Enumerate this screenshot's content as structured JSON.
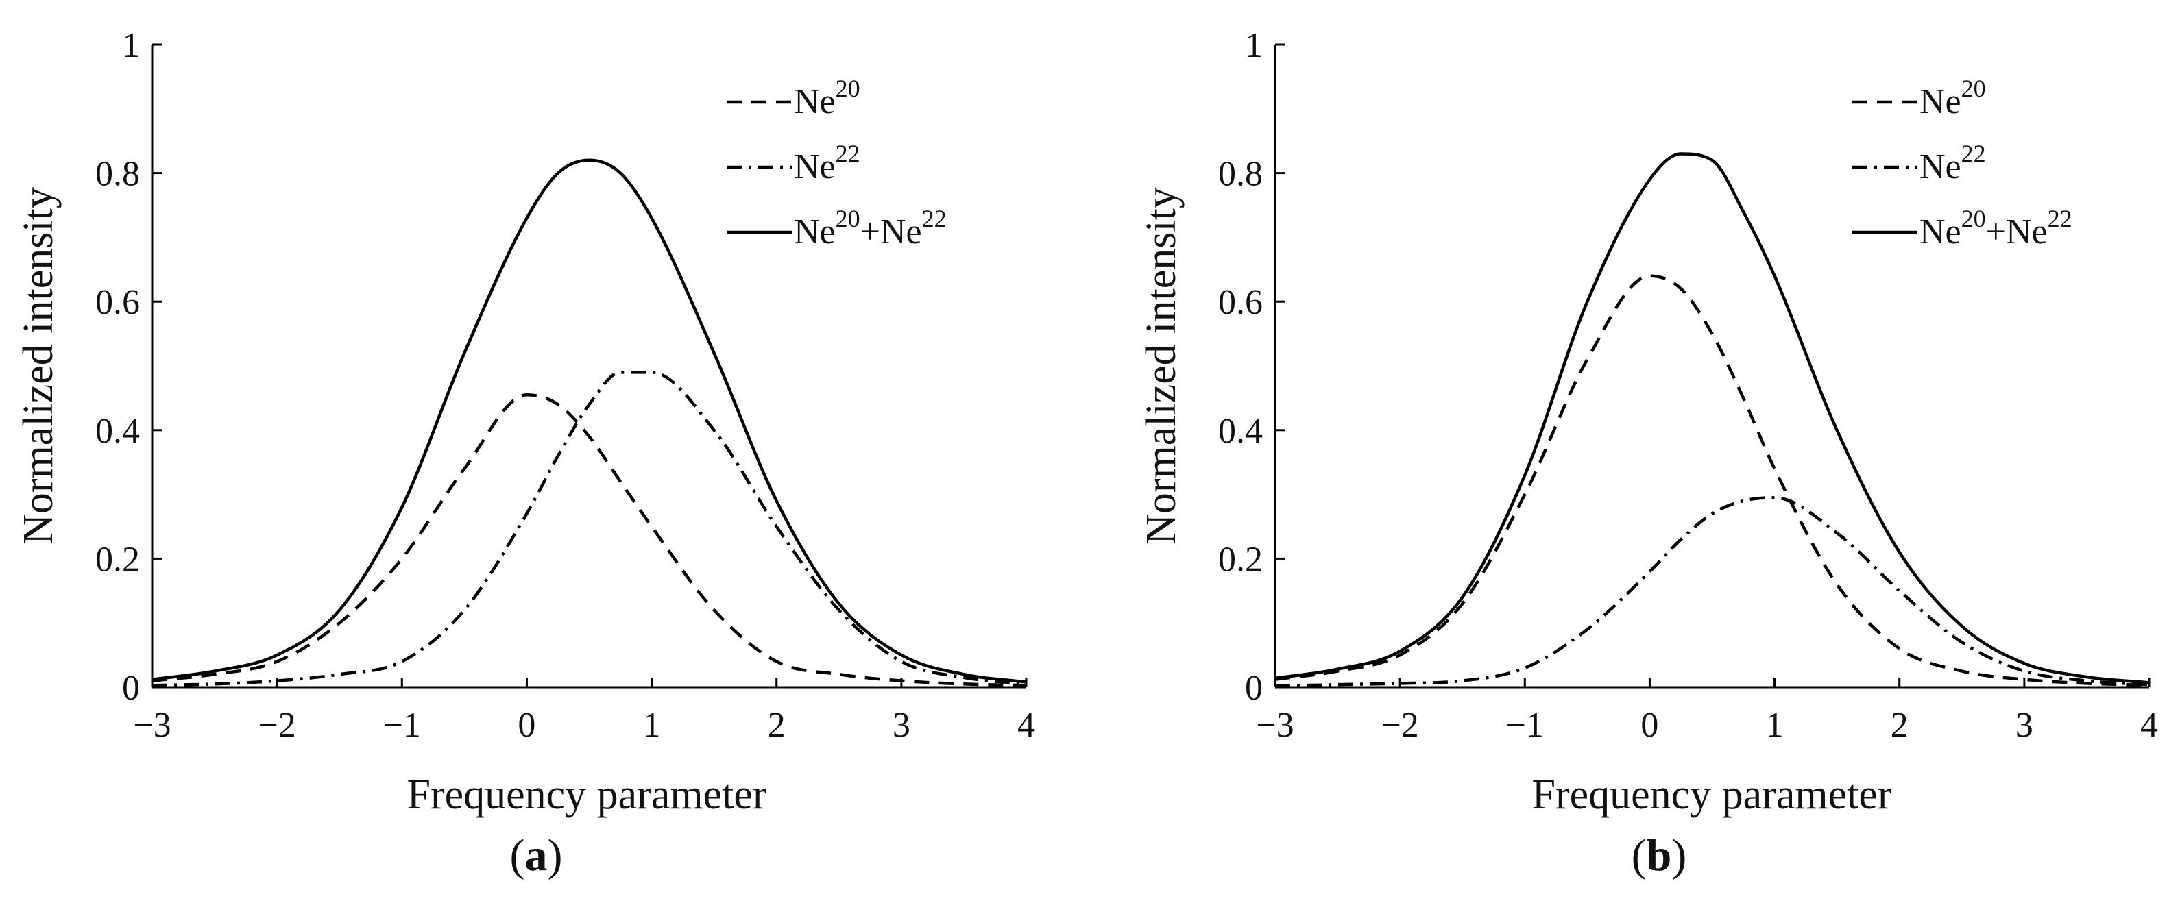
{
  "figure": {
    "panel_labels": [
      "a",
      "b"
    ]
  },
  "chart_data": [
    {
      "type": "line",
      "panel": "a",
      "xlabel": "Frequency parameter",
      "ylabel": "Normalized intensity",
      "xlim": [
        -3,
        4
      ],
      "ylim": [
        0,
        1
      ],
      "xticks": [
        -3,
        -2,
        -1,
        0,
        1,
        2,
        3,
        4
      ],
      "xtick_labels": [
        "−3",
        "−2",
        "−1",
        "0",
        "1",
        "2",
        "3",
        "4"
      ],
      "yticks": [
        0,
        0.2,
        0.4,
        0.6,
        0.8,
        1
      ],
      "ytick_labels": [
        "0",
        "0.2",
        "0.4",
        "0.6",
        "0.8",
        "1"
      ],
      "grid": false,
      "legend_position": "top-right",
      "x": [
        -3,
        -2.5,
        -2,
        -1.5,
        -1,
        -0.5,
        0,
        0.25,
        0.5,
        0.75,
        1,
        1.5,
        2,
        2.5,
        3,
        3.5,
        4
      ],
      "series": [
        {
          "name": {
            "base": "Ne",
            "sup": "20"
          },
          "line_style": "dashed",
          "values": [
            0.01,
            0.02,
            0.04,
            0.1,
            0.2,
            0.34,
            0.455,
            0.44,
            0.39,
            0.32,
            0.25,
            0.12,
            0.04,
            0.02,
            0.01,
            0.005,
            0.003
          ]
        },
        {
          "name": {
            "base": "Ne",
            "sup": "22"
          },
          "line_style": "dashdot",
          "values": [
            0.003,
            0.005,
            0.01,
            0.02,
            0.04,
            0.12,
            0.27,
            0.36,
            0.44,
            0.49,
            0.49,
            0.4,
            0.25,
            0.12,
            0.04,
            0.015,
            0.005
          ]
        },
        {
          "name": {
            "base": "Ne",
            "sup": "20",
            "plus": "+Ne",
            "sup2": "22"
          },
          "line_style": "solid",
          "values": [
            0.012,
            0.025,
            0.05,
            0.12,
            0.28,
            0.52,
            0.73,
            0.8,
            0.82,
            0.8,
            0.73,
            0.52,
            0.29,
            0.13,
            0.05,
            0.02,
            0.008
          ]
        }
      ]
    },
    {
      "type": "line",
      "panel": "b",
      "xlabel": "Frequency parameter",
      "ylabel": "Normalized intensity",
      "xlim": [
        -3,
        4
      ],
      "ylim": [
        0,
        1
      ],
      "xticks": [
        -3,
        -2,
        -1,
        0,
        1,
        2,
        3,
        4
      ],
      "xtick_labels": [
        "−3",
        "−2",
        "−1",
        "0",
        "1",
        "2",
        "3",
        "4"
      ],
      "yticks": [
        0,
        0.2,
        0.4,
        0.6,
        0.8,
        1
      ],
      "ytick_labels": [
        "0",
        "0.2",
        "0.4",
        "0.6",
        "0.8",
        "1"
      ],
      "grid": false,
      "legend_position": "top-right",
      "x": [
        -3,
        -2.5,
        -2,
        -1.5,
        -1,
        -0.5,
        0,
        0.25,
        0.5,
        0.75,
        1,
        1.5,
        2,
        2.5,
        3,
        3.5,
        4
      ],
      "series": [
        {
          "name": {
            "base": "Ne",
            "sup": "20"
          },
          "line_style": "dashed",
          "values": [
            0.012,
            0.025,
            0.05,
            0.13,
            0.3,
            0.51,
            0.64,
            0.62,
            0.55,
            0.45,
            0.34,
            0.16,
            0.06,
            0.025,
            0.012,
            0.006,
            0.003
          ]
        },
        {
          "name": {
            "base": "Ne",
            "sup": "22"
          },
          "line_style": "dashdot",
          "values": [
            0.002,
            0.004,
            0.006,
            0.01,
            0.03,
            0.09,
            0.18,
            0.23,
            0.27,
            0.29,
            0.295,
            0.24,
            0.15,
            0.07,
            0.025,
            0.01,
            0.004
          ]
        },
        {
          "name": {
            "base": "Ne",
            "sup": "20",
            "plus": "+Ne",
            "sup2": "22"
          },
          "line_style": "solid",
          "values": [
            0.014,
            0.028,
            0.056,
            0.14,
            0.33,
            0.6,
            0.79,
            0.83,
            0.82,
            0.74,
            0.64,
            0.4,
            0.21,
            0.095,
            0.037,
            0.016,
            0.007
          ]
        }
      ]
    }
  ]
}
